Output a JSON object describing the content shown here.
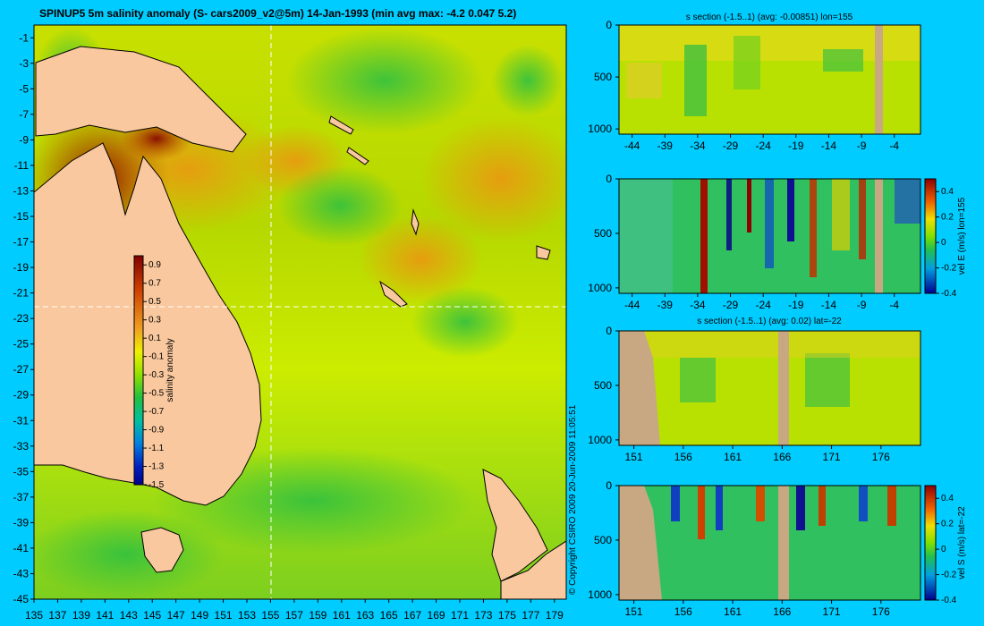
{
  "main_title": "SPINUP5 5m salinity anomaly (S- cars2009_v2@5m) 14-Jan-1993 (min avg max: -4.2 0.047 5.2)",
  "copyright": "© Copyright CSIRO 2009    20-Jun-2009 11:05:51",
  "colors": {
    "background": "#00ccff",
    "land": "#f9c89e",
    "section_land": "#c8a882",
    "crosshair": "#ffffff"
  },
  "chart_data": [
    {
      "type": "heatmap",
      "panel": "map",
      "title": "SPINUP5 5m salinity anomaly (S- cars2009_v2@5m) 14-Jan-1993 (min avg max: -4.2 0.047 5.2)",
      "xlabel": "",
      "ylabel": "",
      "xlim": [
        135,
        180
      ],
      "ylim": [
        -45,
        0
      ],
      "x_ticks": [
        "135",
        "137",
        "139",
        "141",
        "143",
        "145",
        "147",
        "149",
        "151",
        "153",
        "155",
        "157",
        "159",
        "161",
        "163",
        "165",
        "167",
        "169",
        "171",
        "173",
        "175",
        "177",
        "179"
      ],
      "y_ticks": [
        "-1",
        "-3",
        "-5",
        "-7",
        "-9",
        "-11",
        "-13",
        "-15",
        "-17",
        "-19",
        "-21",
        "-23",
        "-25",
        "-27",
        "-29",
        "-31",
        "-33",
        "-35",
        "-37",
        "-39",
        "-41",
        "-43",
        "-45"
      ],
      "crosshair_lon": 155,
      "crosshair_lat": -22,
      "colorbar": {
        "label": "salinity anomaly",
        "ticks": [
          "0.9",
          "0.7",
          "0.5",
          "0.3",
          "0.1",
          "-0.1",
          "-0.3",
          "-0.5",
          "-0.7",
          "-0.9",
          "-1.1",
          "-1.3",
          "-1.5"
        ],
        "range": [
          -1.5,
          1.0
        ]
      }
    },
    {
      "type": "heatmap",
      "panel": "lon-section-salinity",
      "title": "s section (-1.5..1) (avg: -0.00851) lon=155",
      "xlim": [
        -46,
        0
      ],
      "ylim": [
        1050,
        0
      ],
      "x_ticks": [
        "-44",
        "-39",
        "-34",
        "-29",
        "-24",
        "-19",
        "-14",
        "-9",
        "-4"
      ],
      "y_ticks": [
        "0",
        "500",
        "1000"
      ]
    },
    {
      "type": "heatmap",
      "panel": "lon-section-velocity",
      "title": "",
      "xlim": [
        -46,
        0
      ],
      "ylim": [
        1050,
        0
      ],
      "x_ticks": [
        "-44",
        "-39",
        "-34",
        "-29",
        "-24",
        "-19",
        "-14",
        "-9",
        "-4"
      ],
      "y_ticks": [
        "0",
        "500",
        "1000"
      ],
      "colorbar": {
        "label": "vel E (m/s) lon=155",
        "ticks": [
          "0.4",
          "0.2",
          "0",
          "-0.2",
          "-0.4"
        ],
        "range": [
          -0.4,
          0.5
        ]
      }
    },
    {
      "type": "heatmap",
      "panel": "lat-section-salinity",
      "title": "s section (-1.5..1) (avg: 0.02) lat=-22",
      "xlim": [
        149.5,
        180
      ],
      "ylim": [
        1050,
        0
      ],
      "x_ticks": [
        "151",
        "156",
        "161",
        "166",
        "171",
        "176"
      ],
      "y_ticks": [
        "0",
        "500",
        "1000"
      ]
    },
    {
      "type": "heatmap",
      "panel": "lat-section-velocity",
      "title": "",
      "xlim": [
        149.5,
        180
      ],
      "ylim": [
        1050,
        0
      ],
      "x_ticks": [
        "151",
        "156",
        "161",
        "166",
        "171",
        "176"
      ],
      "y_ticks": [
        "0",
        "500",
        "1000"
      ],
      "colorbar": {
        "label": "vel S (m/s) lat=-22",
        "ticks": [
          "0.4",
          "0.2",
          "0",
          "-0.2",
          "-0.4"
        ],
        "range": [
          -0.4,
          0.5
        ]
      }
    }
  ]
}
